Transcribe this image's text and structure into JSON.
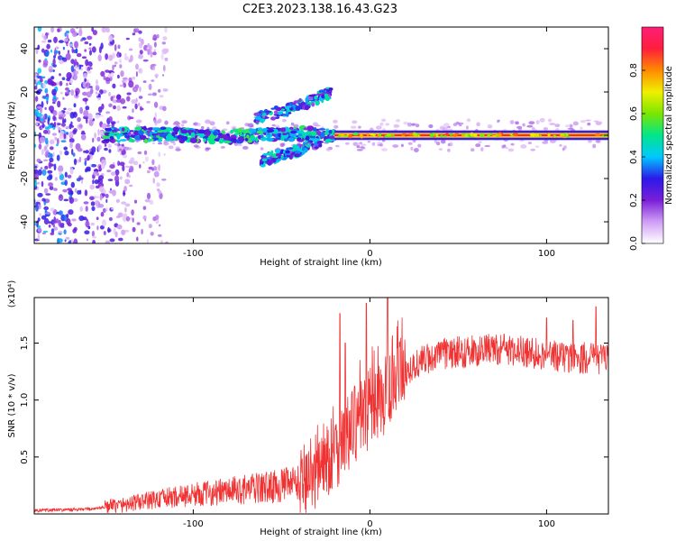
{
  "title": "C2E3.2023.138.16.43.G23",
  "chart_data": [
    {
      "type": "heatmap",
      "xlabel": "Height of straight line (km)",
      "ylabel": "Frequency (Hz)",
      "xlim": [
        -190,
        135
      ],
      "ylim": [
        -50,
        50
      ],
      "x_ticks": [
        -100,
        0,
        100
      ],
      "y_ticks": [
        -40,
        -20,
        0,
        20,
        40
      ],
      "colorbar": {
        "label": "Normalized spectral amplitude",
        "range": [
          0.0,
          1.0
        ],
        "ticks": [
          "0.0",
          "0.2",
          "0.4",
          "0.6",
          "0.8"
        ],
        "tick_values": [
          0.0,
          0.2,
          0.4,
          0.6,
          0.8
        ],
        "colormap": [
          "#ffffff",
          "#cf9ef5",
          "#7a1ed8",
          "#2b19e8",
          "#00c8ff",
          "#00e68a",
          "#7be600",
          "#f0f000",
          "#ff8a00",
          "#ff1e3c",
          "#ff1e78"
        ]
      },
      "features": {
        "noise_region_x": [
          -190,
          -130
        ],
        "main_trace": [
          {
            "x": -150,
            "y": 0
          },
          {
            "x": -120,
            "y": 0.5
          },
          {
            "x": -90,
            "y": -0.5
          },
          {
            "x": -60,
            "y": 0
          },
          {
            "x": -40,
            "y": 1
          },
          {
            "x": -20,
            "y": 0
          },
          {
            "x": 0,
            "y": 0
          },
          {
            "x": 135,
            "y": 0
          }
        ],
        "upper_branch": [
          {
            "x": -65,
            "y": 8
          },
          {
            "x": -50,
            "y": 11
          },
          {
            "x": -35,
            "y": 15
          },
          {
            "x": -22,
            "y": 20
          }
        ],
        "lower_branch": [
          {
            "x": -62,
            "y": -12
          },
          {
            "x": -50,
            "y": -9
          },
          {
            "x": -40,
            "y": -7
          },
          {
            "x": -28,
            "y": -3
          }
        ],
        "strong_band_x": [
          -20,
          135
        ]
      }
    },
    {
      "type": "line",
      "xlabel": "Height of straight line (km)",
      "ylabel": "SNR (10 * v/v)",
      "y_multiplier": "(x10⁴)",
      "xlim": [
        -190,
        135
      ],
      "ylim": [
        0,
        1.9
      ],
      "x_ticks": [
        -100,
        0,
        100
      ],
      "y_ticks": [
        "0.5",
        "1.0",
        "1.5"
      ],
      "y_tick_values": [
        0.5,
        1.0,
        1.5
      ],
      "color": "#f03232",
      "trend": {
        "x": [
          -190,
          -160,
          -140,
          -120,
          -100,
          -80,
          -60,
          -40,
          -30,
          -20,
          -15,
          -10,
          -5,
          0,
          5,
          10,
          15,
          20,
          30,
          40,
          50,
          60,
          70,
          80,
          90,
          100,
          110,
          120,
          135
        ],
        "y": [
          0.03,
          0.04,
          0.08,
          0.13,
          0.17,
          0.2,
          0.23,
          0.27,
          0.4,
          0.55,
          0.65,
          0.75,
          0.85,
          0.92,
          1.0,
          1.05,
          1.15,
          1.25,
          1.35,
          1.4,
          1.42,
          1.43,
          1.45,
          1.44,
          1.42,
          1.4,
          1.38,
          1.37,
          1.36
        ]
      },
      "peaks": [
        {
          "x": -17,
          "y": 1.76
        },
        {
          "x": -14,
          "y": 1.5
        },
        {
          "x": -2,
          "y": 1.85
        },
        {
          "x": 10,
          "y": 1.9
        },
        {
          "x": 100,
          "y": 1.72
        },
        {
          "x": 115,
          "y": 1.7
        },
        {
          "x": 128,
          "y": 1.82
        }
      ]
    }
  ]
}
